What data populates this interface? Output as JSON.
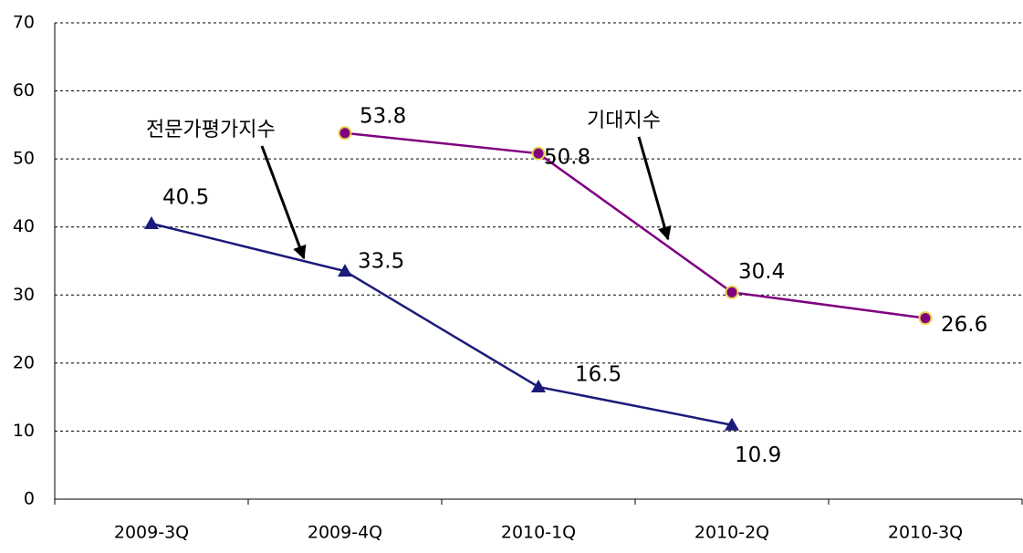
{
  "chart_data": {
    "type": "line",
    "categories": [
      "2009-3Q",
      "2009-4Q",
      "2010-1Q",
      "2010-2Q",
      "2010-3Q"
    ],
    "series": [
      {
        "name": "전문가평가지수",
        "color": "#1a1a7a",
        "marker": "triangle",
        "values": [
          40.5,
          33.5,
          16.5,
          10.9,
          null
        ]
      },
      {
        "name": "기대지수",
        "color": "#800080",
        "marker": "circle",
        "values": [
          null,
          53.8,
          50.8,
          30.4,
          26.6
        ]
      }
    ],
    "ylim": [
      0,
      70
    ],
    "yticks": [
      0,
      10,
      20,
      30,
      40,
      50,
      60,
      70
    ],
    "grid": true
  }
}
